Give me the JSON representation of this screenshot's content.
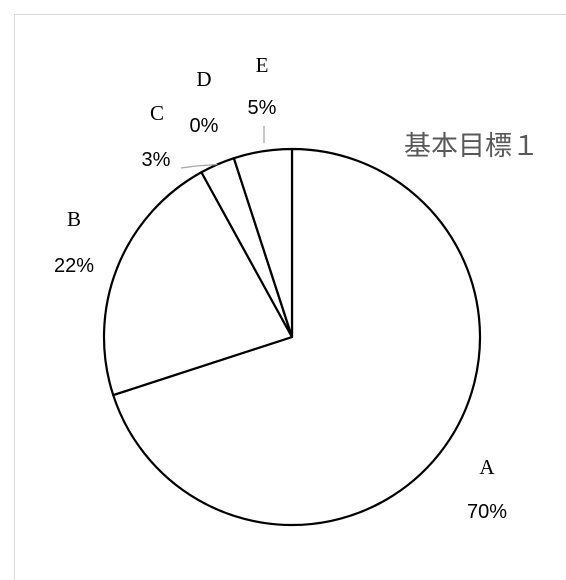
{
  "chart_data": {
    "type": "pie",
    "title": "基本目標１",
    "categories": [
      "A",
      "B",
      "C",
      "D",
      "E"
    ],
    "values": [
      70,
      22,
      3,
      0,
      5
    ],
    "value_labels": [
      "70%",
      "22%",
      "3%",
      "0%",
      "5%"
    ],
    "legend": "none",
    "slice_fill": "#ffffff",
    "slice_stroke": "#000000",
    "leader_line_color": "#a6a6a6"
  }
}
